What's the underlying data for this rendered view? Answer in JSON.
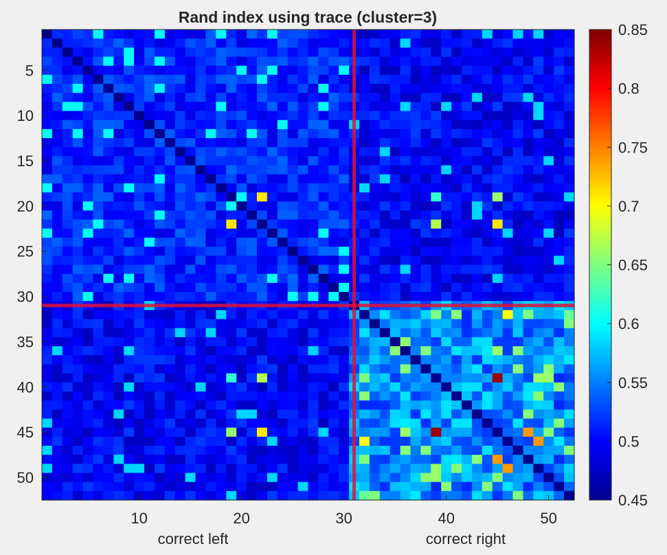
{
  "chart_data": {
    "type": "heatmap",
    "title": "Rand index using trace (cluster=3)",
    "xlabel": "",
    "ylabel": "",
    "x_group_labels": [
      "correct left",
      "correct right"
    ],
    "n": 52,
    "x_range": [
      0.5,
      52.5
    ],
    "y_range": [
      0.5,
      52.5
    ],
    "y_reversed": true,
    "x_ticks": [
      10,
      20,
      30,
      40,
      50
    ],
    "y_ticks": [
      5,
      10,
      15,
      20,
      25,
      30,
      35,
      40,
      45,
      50
    ],
    "clim": [
      0.45,
      0.85
    ],
    "colorbar_ticks": [
      0.45,
      0.5,
      0.55,
      0.6,
      0.65,
      0.7,
      0.75,
      0.8,
      0.85
    ],
    "colormap": "jet",
    "divider_at": 31,
    "divider_color": "#e0103a",
    "grid": false,
    "colorbar": "right",
    "block_means": {
      "left_left": 0.515,
      "left_right": 0.5,
      "right_right": 0.555
    },
    "highlight_cells": [
      {
        "row": 19,
        "col": 22,
        "value": 0.71
      },
      {
        "row": 22,
        "col": 19,
        "value": 0.71
      },
      {
        "row": 22,
        "col": 39,
        "value": 0.67
      },
      {
        "row": 22,
        "col": 45,
        "value": 0.71
      },
      {
        "row": 19,
        "col": 45,
        "value": 0.66
      },
      {
        "row": 19,
        "col": 39,
        "value": 0.62
      },
      {
        "row": 32,
        "col": 46,
        "value": 0.71
      },
      {
        "row": 32,
        "col": 39,
        "value": 0.67
      },
      {
        "row": 32,
        "col": 48,
        "value": 0.67
      },
      {
        "row": 32,
        "col": 52,
        "value": 0.64
      },
      {
        "row": 39,
        "col": 45,
        "value": 0.84
      },
      {
        "row": 45,
        "col": 39,
        "value": 0.84
      },
      {
        "row": 39,
        "col": 22,
        "value": 0.67
      },
      {
        "row": 45,
        "col": 22,
        "value": 0.71
      },
      {
        "row": 45,
        "col": 19,
        "value": 0.66
      },
      {
        "row": 39,
        "col": 32,
        "value": 0.65
      },
      {
        "row": 39,
        "col": 49,
        "value": 0.66
      },
      {
        "row": 45,
        "col": 36,
        "value": 0.65
      },
      {
        "row": 45,
        "col": 48,
        "value": 0.74
      },
      {
        "row": 45,
        "col": 50,
        "value": 0.65
      },
      {
        "row": 46,
        "col": 32,
        "value": 0.7
      },
      {
        "row": 49,
        "col": 46,
        "value": 0.74
      },
      {
        "row": 52,
        "col": 33,
        "value": 0.65
      },
      {
        "row": 52,
        "col": 47,
        "value": 0.65
      },
      {
        "row": 36,
        "col": 45,
        "value": 0.66
      },
      {
        "row": 50,
        "col": 39,
        "value": 0.66
      },
      {
        "row": 50,
        "col": 45,
        "value": 0.65
      },
      {
        "row": 48,
        "col": 32,
        "value": 0.65
      }
    ],
    "cells_diagonal": "low values along the main diagonal (self-comparison shown dark blue)",
    "cells": "off-diagonal values vary mostly between 0.46 and 0.62"
  }
}
